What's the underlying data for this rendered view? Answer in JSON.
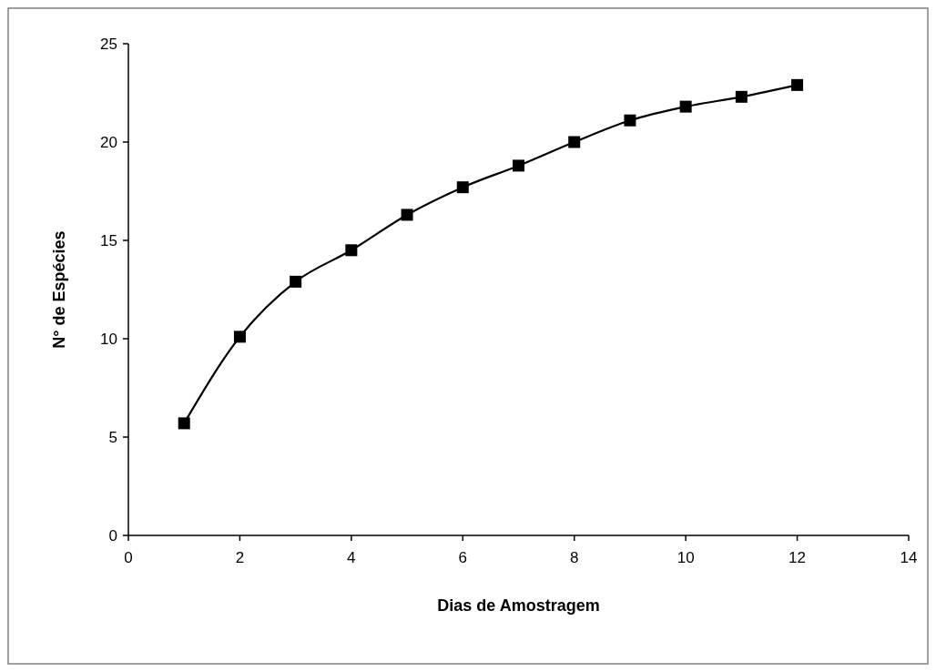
{
  "chart_data": {
    "type": "line",
    "xlabel": "Dias de Amostragem",
    "ylabel": "N° de Espécies",
    "x": [
      1,
      2,
      3,
      4,
      5,
      6,
      7,
      8,
      9,
      10,
      11,
      12
    ],
    "series": [
      {
        "color": "#000000",
        "values": [
          5.7,
          10.1,
          12.9,
          14.5,
          16.3,
          17.7,
          18.8,
          20.0,
          21.1,
          21.8,
          22.3,
          22.9
        ]
      }
    ],
    "xlim": [
      0,
      14
    ],
    "xticks": [
      0,
      2,
      4,
      6,
      8,
      10,
      12,
      14
    ],
    "ylim": [
      0,
      25
    ],
    "yticks": [
      0,
      5,
      10,
      15,
      20,
      25
    ],
    "grid": false,
    "marker": "square",
    "line_style": "solid"
  }
}
